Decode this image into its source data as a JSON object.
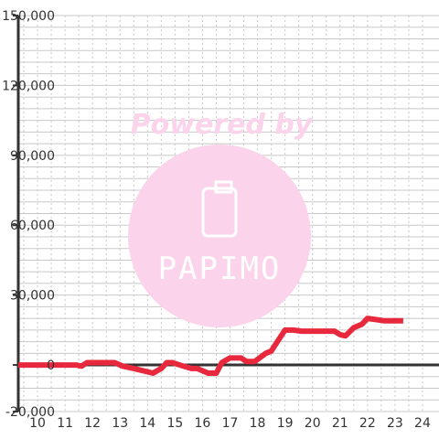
{
  "watermark": {
    "text": "Powered by",
    "logo_text": "PAPIMO",
    "color": "#fbd3ea"
  },
  "chart_data": {
    "type": "line",
    "title": "",
    "xlabel": "",
    "ylabel": "",
    "xlim": [
      9.3,
      24.6
    ],
    "ylim": [
      -20000,
      150000
    ],
    "x_ticks": [
      "10",
      "11",
      "12",
      "13",
      "14",
      "15",
      "16",
      "17",
      "18",
      "19",
      "20",
      "21",
      "22",
      "23",
      "24"
    ],
    "y_ticks": [
      "150,000",
      "120,000",
      "90,000",
      "60,000",
      "30,000",
      "0",
      "-20,000"
    ],
    "grid": true,
    "series": [
      {
        "color": "#e8283c",
        "x": [
          9.3,
          11.4,
          11.6,
          11.8,
          12.8,
          13.1,
          13.5,
          14.2,
          14.5,
          14.7,
          14.9,
          15.3,
          15.6,
          15.8,
          16.0,
          16.2,
          16.5,
          16.7,
          17.0,
          17.4,
          17.6,
          17.9,
          18.3,
          18.5,
          19.0,
          19.3,
          19.6,
          20.3,
          20.8,
          21.0,
          21.2,
          21.5,
          21.8,
          22.0,
          22.6,
          23.3
        ],
        "y": [
          0,
          0,
          -500,
          1000,
          1000,
          -500,
          -1500,
          -3500,
          -1500,
          1000,
          1000,
          -500,
          -1500,
          -1500,
          -2500,
          -3500,
          -3500,
          1000,
          3000,
          3000,
          1500,
          1500,
          5000,
          6000,
          15000,
          15000,
          14500,
          14500,
          14500,
          13000,
          12500,
          16000,
          17500,
          20000,
          19000,
          19000
        ]
      }
    ]
  }
}
